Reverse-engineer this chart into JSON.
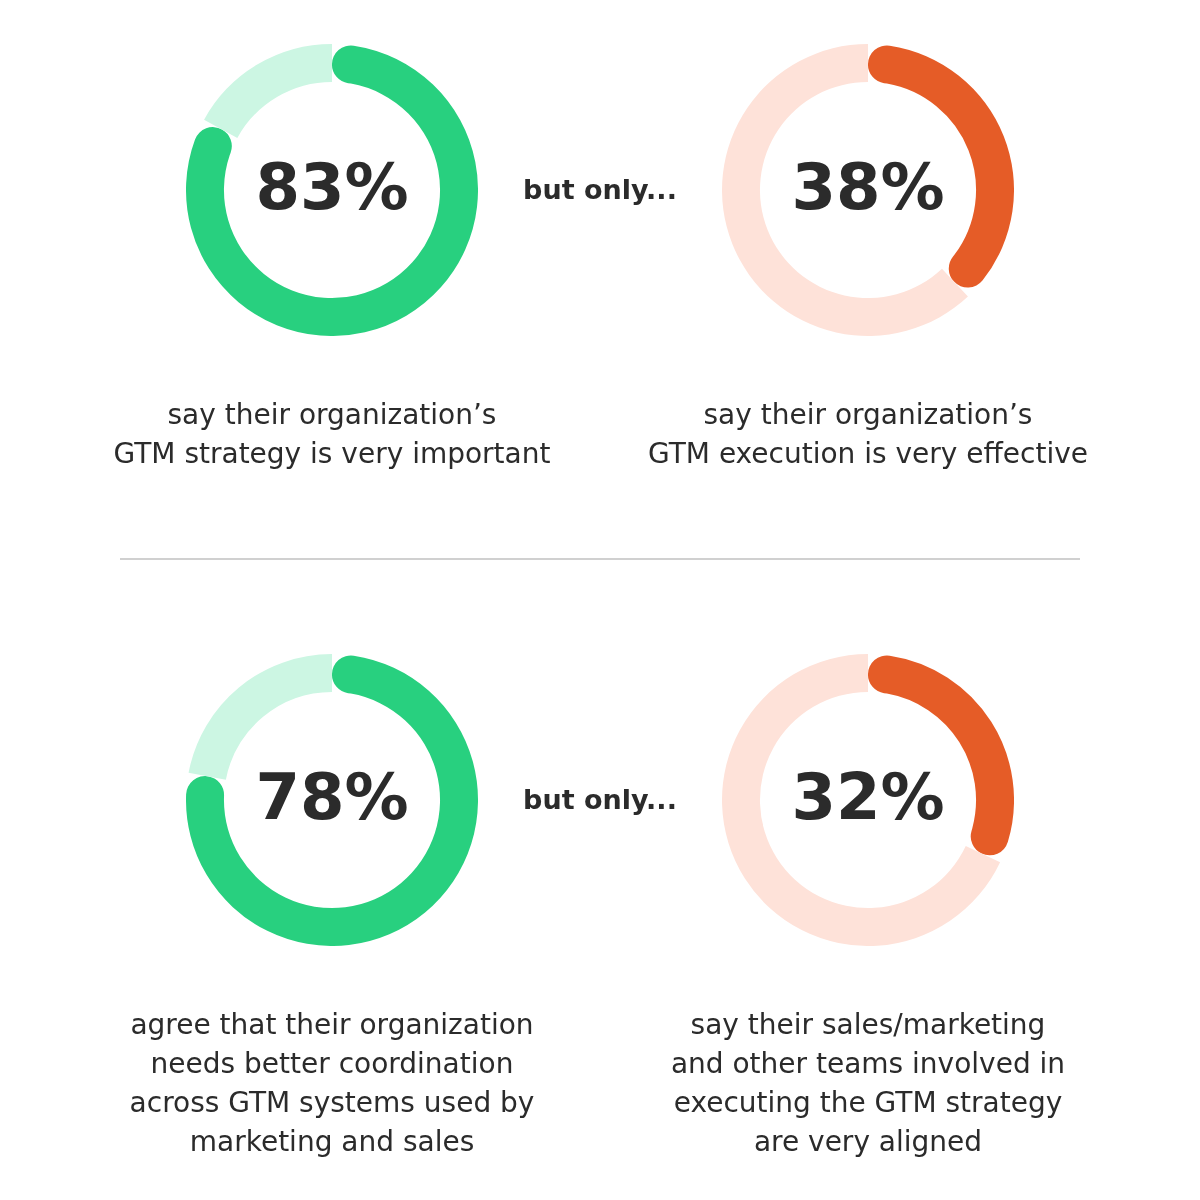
{
  "chart_data": [
    {
      "type": "donut",
      "categories": [
        null,
        null
      ],
      "values": [
        83,
        17
      ],
      "colors": [
        "#28d07f",
        "#ccf6e3"
      ],
      "value_labels": [
        "83%",
        null
      ],
      "title": "say their organization’s\nGTM strategy is very important"
    },
    {
      "type": "donut",
      "categories": [
        null,
        null
      ],
      "values": [
        38,
        62
      ],
      "colors": [
        "#e55c27",
        "#fee2d9"
      ],
      "value_labels": [
        "38%",
        null
      ],
      "title": "say their organization’s\nGTM execution is very effective",
      "annotations": [
        "but only..."
      ]
    },
    {
      "type": "donut",
      "categories": [
        null,
        null
      ],
      "values": [
        78,
        22
      ],
      "colors": [
        "#28d07f",
        "#ccf6e3"
      ],
      "value_labels": [
        "78%",
        null
      ],
      "title": "agree that their organization\nneeds better coordination\nacross GTM systems used by\nmarketing and sales"
    },
    {
      "type": "donut",
      "categories": [
        null,
        null
      ],
      "values": [
        32,
        68
      ],
      "colors": [
        "#e55c27",
        "#fee2d9"
      ],
      "value_labels": [
        "32%",
        null
      ],
      "title": "say their sales/marketing\nand other teams involved in\nexecuting the GTM strategy\nare very aligned",
      "annotations": [
        "but only..."
      ]
    }
  ]
}
